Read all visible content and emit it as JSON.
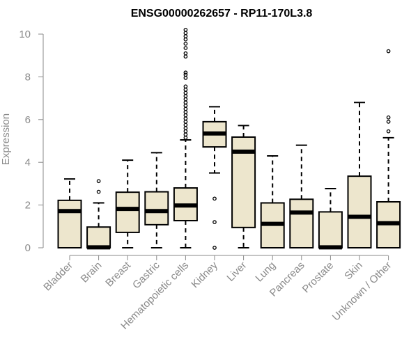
{
  "chart_data": {
    "type": "boxplot",
    "title": "ENSG00000262657 - RP11-170L3.8",
    "xlabel": "",
    "ylabel": "Expression",
    "ylim": [
      0,
      10
    ],
    "yticks": [
      0,
      2,
      4,
      6,
      8,
      10
    ],
    "grid": false,
    "colors": {
      "box_fill": "#ede6cd",
      "box_stroke": "#000000",
      "axis": "#8a8a8a"
    },
    "categories": [
      "Bladder",
      "Brain",
      "Breast",
      "Gastric",
      "Hematopoietic cells",
      "Kidney",
      "Liver",
      "Lung",
      "Pancreas",
      "Prostate",
      "Skin",
      "Unknown / Other"
    ],
    "boxes": [
      {
        "name": "Bladder",
        "min": 0,
        "q1": 0,
        "median": 1.72,
        "q3": 2.22,
        "max": 3.22,
        "outliers": []
      },
      {
        "name": "Brain",
        "min": 0,
        "q1": 0,
        "median": 0.02,
        "q3": 0.97,
        "max": 2.1,
        "outliers": [
          2.62,
          3.12
        ]
      },
      {
        "name": "Breast",
        "min": 0,
        "q1": 0.72,
        "median": 1.82,
        "q3": 2.6,
        "max": 4.1,
        "outliers": []
      },
      {
        "name": "Gastric",
        "min": 0,
        "q1": 1.08,
        "median": 1.72,
        "q3": 2.62,
        "max": 4.45,
        "outliers": []
      },
      {
        "name": "Hematopoietic cells",
        "min": 0,
        "q1": 1.27,
        "median": 1.98,
        "q3": 2.8,
        "max": 5.05,
        "outliers": [
          5.15,
          5.3,
          5.45,
          5.6,
          5.75,
          5.9,
          6.05,
          6.2,
          6.35,
          6.5,
          6.65,
          6.8,
          6.95,
          7.1,
          7.25,
          7.4,
          7.55,
          7.95,
          8.1,
          8.2,
          8.95,
          9.1,
          9.35,
          9.55,
          9.75,
          9.9,
          10.05,
          10.2
        ]
      },
      {
        "name": "Kidney",
        "min": 3.5,
        "q1": 4.72,
        "median": 5.35,
        "q3": 5.9,
        "max": 6.6,
        "outliers": [
          2.3,
          1.2,
          0
        ]
      },
      {
        "name": "Liver",
        "min": 0,
        "q1": 0.95,
        "median": 4.5,
        "q3": 5.18,
        "max": 5.72,
        "outliers": []
      },
      {
        "name": "Lung",
        "min": 0,
        "q1": 0,
        "median": 1.12,
        "q3": 2.1,
        "max": 4.3,
        "outliers": []
      },
      {
        "name": "Pancreas",
        "min": 0,
        "q1": 0,
        "median": 1.65,
        "q3": 2.27,
        "max": 4.8,
        "outliers": []
      },
      {
        "name": "Prostate",
        "min": 0,
        "q1": 0,
        "median": 0.02,
        "q3": 1.68,
        "max": 2.77,
        "outliers": []
      },
      {
        "name": "Skin",
        "min": 0,
        "q1": 0,
        "median": 1.45,
        "q3": 3.35,
        "max": 6.8,
        "outliers": []
      },
      {
        "name": "Unknown / Other",
        "min": 0,
        "q1": 0,
        "median": 1.15,
        "q3": 2.15,
        "max": 5.15,
        "outliers": [
          5.45,
          5.9,
          6.1,
          9.2
        ]
      }
    ]
  }
}
